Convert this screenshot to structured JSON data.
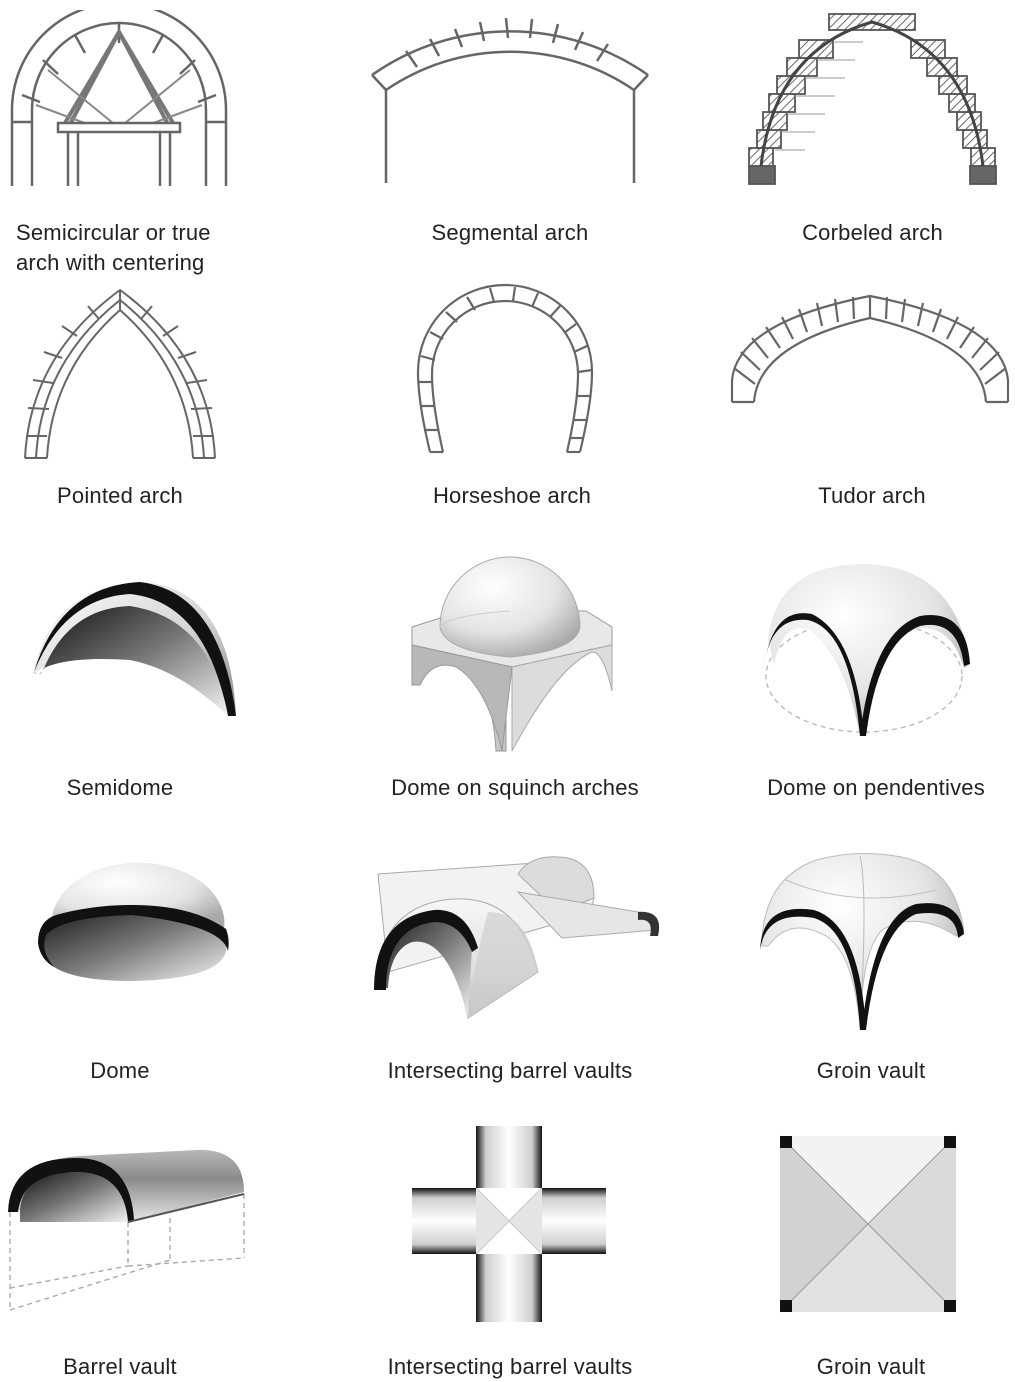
{
  "figures": [
    {
      "id": "semicircular",
      "caption": "Semicircular or true arch with centering"
    },
    {
      "id": "segmental",
      "caption": "Segmental arch"
    },
    {
      "id": "corbeled",
      "caption": "Corbeled arch"
    },
    {
      "id": "pointed",
      "caption": "Pointed arch"
    },
    {
      "id": "horseshoe",
      "caption": "Horseshoe arch"
    },
    {
      "id": "tudor",
      "caption": "Tudor arch"
    },
    {
      "id": "semidome",
      "caption": "Semidome"
    },
    {
      "id": "dome-squinch",
      "caption": "Dome on squinch arches"
    },
    {
      "id": "dome-pendentives",
      "caption": "Dome on pendentives"
    },
    {
      "id": "dome",
      "caption": "Dome"
    },
    {
      "id": "intersecting-1",
      "caption": "Intersecting barrel vaults"
    },
    {
      "id": "groin-1",
      "caption": "Groin vault"
    },
    {
      "id": "barrel",
      "caption": "Barrel vault"
    },
    {
      "id": "intersecting-2",
      "caption": "Intersecting barrel vaults"
    },
    {
      "id": "groin-2",
      "caption": "Groin vault"
    }
  ]
}
